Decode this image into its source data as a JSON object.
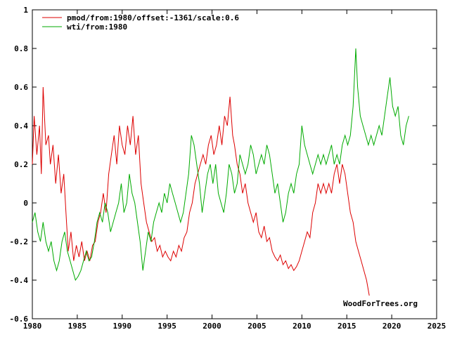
{
  "chart_data": {
    "type": "line",
    "title": "",
    "xlabel": "",
    "ylabel": "",
    "xlim": [
      1980,
      2025
    ],
    "ylim": [
      -0.6,
      1
    ],
    "x_ticks": [
      "1980",
      "1985",
      "1990",
      "1995",
      "2000",
      "2005",
      "2010",
      "2015",
      "2020",
      "2025"
    ],
    "y_ticks": [
      "-0.6",
      "-0.4",
      "-0.2",
      "0",
      "0.2",
      "0.4",
      "0.6",
      "0.8",
      "1"
    ],
    "grid": false,
    "legend_position": "top-left",
    "credit": "WoodForTrees.org",
    "series": [
      {
        "name": "pmod/from:1980/offset:-1361/scale:0.6",
        "color": "#dd0000",
        "points": [
          [
            1980.0,
            0.2
          ],
          [
            1980.2,
            0.45
          ],
          [
            1980.5,
            0.25
          ],
          [
            1980.8,
            0.4
          ],
          [
            1981.0,
            0.15
          ],
          [
            1981.2,
            0.6
          ],
          [
            1981.5,
            0.3
          ],
          [
            1981.8,
            0.35
          ],
          [
            1982.0,
            0.2
          ],
          [
            1982.3,
            0.3
          ],
          [
            1982.6,
            0.1
          ],
          [
            1982.9,
            0.25
          ],
          [
            1983.2,
            0.05
          ],
          [
            1983.5,
            0.15
          ],
          [
            1983.8,
            -0.1
          ],
          [
            1984.0,
            -0.25
          ],
          [
            1984.3,
            -0.15
          ],
          [
            1984.6,
            -0.3
          ],
          [
            1984.9,
            -0.22
          ],
          [
            1985.2,
            -0.28
          ],
          [
            1985.5,
            -0.2
          ],
          [
            1985.8,
            -0.3
          ],
          [
            1986.1,
            -0.25
          ],
          [
            1986.4,
            -0.3
          ],
          [
            1986.7,
            -0.22
          ],
          [
            1987.0,
            -0.2
          ],
          [
            1987.3,
            -0.1
          ],
          [
            1987.6,
            -0.05
          ],
          [
            1987.9,
            0.05
          ],
          [
            1988.2,
            -0.05
          ],
          [
            1988.5,
            0.15
          ],
          [
            1988.8,
            0.25
          ],
          [
            1989.1,
            0.35
          ],
          [
            1989.4,
            0.2
          ],
          [
            1989.7,
            0.4
          ],
          [
            1990.0,
            0.3
          ],
          [
            1990.3,
            0.25
          ],
          [
            1990.6,
            0.4
          ],
          [
            1990.9,
            0.3
          ],
          [
            1991.2,
            0.45
          ],
          [
            1991.5,
            0.25
          ],
          [
            1991.8,
            0.35
          ],
          [
            1992.1,
            0.1
          ],
          [
            1992.4,
            0.0
          ],
          [
            1992.7,
            -0.1
          ],
          [
            1993.0,
            -0.15
          ],
          [
            1993.3,
            -0.2
          ],
          [
            1993.6,
            -0.18
          ],
          [
            1993.9,
            -0.25
          ],
          [
            1994.2,
            -0.22
          ],
          [
            1994.5,
            -0.28
          ],
          [
            1994.8,
            -0.25
          ],
          [
            1995.1,
            -0.28
          ],
          [
            1995.4,
            -0.3
          ],
          [
            1995.7,
            -0.25
          ],
          [
            1996.0,
            -0.28
          ],
          [
            1996.3,
            -0.22
          ],
          [
            1996.6,
            -0.25
          ],
          [
            1996.9,
            -0.18
          ],
          [
            1997.2,
            -0.15
          ],
          [
            1997.5,
            -0.05
          ],
          [
            1997.8,
            0.0
          ],
          [
            1998.1,
            0.1
          ],
          [
            1998.4,
            0.15
          ],
          [
            1998.7,
            0.2
          ],
          [
            1999.0,
            0.25
          ],
          [
            1999.3,
            0.2
          ],
          [
            1999.6,
            0.3
          ],
          [
            1999.9,
            0.35
          ],
          [
            2000.2,
            0.25
          ],
          [
            2000.5,
            0.3
          ],
          [
            2000.8,
            0.4
          ],
          [
            2001.1,
            0.3
          ],
          [
            2001.4,
            0.45
          ],
          [
            2001.7,
            0.4
          ],
          [
            2002.0,
            0.55
          ],
          [
            2002.3,
            0.35
          ],
          [
            2002.5,
            0.3
          ],
          [
            2002.8,
            0.2
          ],
          [
            2003.1,
            0.15
          ],
          [
            2003.4,
            0.05
          ],
          [
            2003.7,
            0.1
          ],
          [
            2004.0,
            0.0
          ],
          [
            2004.3,
            -0.05
          ],
          [
            2004.6,
            -0.1
          ],
          [
            2004.9,
            -0.05
          ],
          [
            2005.2,
            -0.15
          ],
          [
            2005.5,
            -0.18
          ],
          [
            2005.8,
            -0.12
          ],
          [
            2006.1,
            -0.2
          ],
          [
            2006.4,
            -0.18
          ],
          [
            2006.7,
            -0.25
          ],
          [
            2007.0,
            -0.28
          ],
          [
            2007.3,
            -0.3
          ],
          [
            2007.6,
            -0.27
          ],
          [
            2007.9,
            -0.32
          ],
          [
            2008.2,
            -0.3
          ],
          [
            2008.5,
            -0.34
          ],
          [
            2008.8,
            -0.32
          ],
          [
            2009.1,
            -0.35
          ],
          [
            2009.4,
            -0.33
          ],
          [
            2009.7,
            -0.3
          ],
          [
            2010.0,
            -0.25
          ],
          [
            2010.3,
            -0.2
          ],
          [
            2010.6,
            -0.15
          ],
          [
            2010.9,
            -0.18
          ],
          [
            2011.2,
            -0.05
          ],
          [
            2011.5,
            0.0
          ],
          [
            2011.8,
            0.1
          ],
          [
            2012.1,
            0.05
          ],
          [
            2012.4,
            0.1
          ],
          [
            2012.7,
            0.05
          ],
          [
            2013.0,
            0.1
          ],
          [
            2013.3,
            0.05
          ],
          [
            2013.6,
            0.15
          ],
          [
            2013.9,
            0.2
          ],
          [
            2014.2,
            0.1
          ],
          [
            2014.5,
            0.2
          ],
          [
            2014.8,
            0.15
          ],
          [
            2015.1,
            0.05
          ],
          [
            2015.4,
            -0.05
          ],
          [
            2015.7,
            -0.1
          ],
          [
            2016.0,
            -0.2
          ],
          [
            2016.3,
            -0.25
          ],
          [
            2016.6,
            -0.3
          ],
          [
            2016.9,
            -0.35
          ],
          [
            2017.2,
            -0.4
          ],
          [
            2017.5,
            -0.48
          ]
        ]
      },
      {
        "name": "wti/from:1980",
        "color": "#00aa00",
        "points": [
          [
            1980.0,
            -0.1
          ],
          [
            1980.3,
            -0.05
          ],
          [
            1980.6,
            -0.15
          ],
          [
            1980.9,
            -0.2
          ],
          [
            1981.2,
            -0.1
          ],
          [
            1981.5,
            -0.2
          ],
          [
            1981.8,
            -0.25
          ],
          [
            1982.1,
            -0.2
          ],
          [
            1982.4,
            -0.3
          ],
          [
            1982.7,
            -0.35
          ],
          [
            1983.0,
            -0.3
          ],
          [
            1983.3,
            -0.2
          ],
          [
            1983.6,
            -0.15
          ],
          [
            1983.9,
            -0.25
          ],
          [
            1984.2,
            -0.3
          ],
          [
            1984.5,
            -0.35
          ],
          [
            1984.8,
            -0.4
          ],
          [
            1985.1,
            -0.38
          ],
          [
            1985.4,
            -0.35
          ],
          [
            1985.7,
            -0.3
          ],
          [
            1986.0,
            -0.25
          ],
          [
            1986.3,
            -0.3
          ],
          [
            1986.6,
            -0.28
          ],
          [
            1986.9,
            -0.2
          ],
          [
            1987.2,
            -0.1
          ],
          [
            1987.5,
            -0.05
          ],
          [
            1987.8,
            -0.1
          ],
          [
            1988.1,
            0.0
          ],
          [
            1988.4,
            -0.05
          ],
          [
            1988.7,
            -0.15
          ],
          [
            1989.0,
            -0.1
          ],
          [
            1989.3,
            -0.05
          ],
          [
            1989.6,
            0.0
          ],
          [
            1989.9,
            0.1
          ],
          [
            1990.2,
            -0.05
          ],
          [
            1990.5,
            0.0
          ],
          [
            1990.8,
            0.15
          ],
          [
            1991.1,
            0.05
          ],
          [
            1991.4,
            0.0
          ],
          [
            1991.7,
            -0.1
          ],
          [
            1992.0,
            -0.2
          ],
          [
            1992.3,
            -0.35
          ],
          [
            1992.6,
            -0.25
          ],
          [
            1992.9,
            -0.15
          ],
          [
            1993.2,
            -0.2
          ],
          [
            1993.5,
            -0.1
          ],
          [
            1993.8,
            -0.05
          ],
          [
            1994.1,
            0.0
          ],
          [
            1994.4,
            -0.05
          ],
          [
            1994.7,
            0.05
          ],
          [
            1995.0,
            0.0
          ],
          [
            1995.3,
            0.1
          ],
          [
            1995.6,
            0.05
          ],
          [
            1995.9,
            0.0
          ],
          [
            1996.2,
            -0.05
          ],
          [
            1996.5,
            -0.1
          ],
          [
            1996.8,
            -0.05
          ],
          [
            1997.1,
            0.05
          ],
          [
            1997.4,
            0.15
          ],
          [
            1997.7,
            0.35
          ],
          [
            1998.0,
            0.3
          ],
          [
            1998.3,
            0.2
          ],
          [
            1998.6,
            0.1
          ],
          [
            1998.9,
            -0.05
          ],
          [
            1999.2,
            0.05
          ],
          [
            1999.5,
            0.15
          ],
          [
            1999.8,
            0.2
          ],
          [
            2000.1,
            0.1
          ],
          [
            2000.4,
            0.2
          ],
          [
            2000.7,
            0.05
          ],
          [
            2001.0,
            0.0
          ],
          [
            2001.3,
            -0.05
          ],
          [
            2001.6,
            0.05
          ],
          [
            2001.9,
            0.2
          ],
          [
            2002.2,
            0.15
          ],
          [
            2002.5,
            0.05
          ],
          [
            2002.8,
            0.1
          ],
          [
            2003.1,
            0.25
          ],
          [
            2003.4,
            0.2
          ],
          [
            2003.7,
            0.15
          ],
          [
            2004.0,
            0.2
          ],
          [
            2004.3,
            0.3
          ],
          [
            2004.6,
            0.25
          ],
          [
            2004.9,
            0.15
          ],
          [
            2005.2,
            0.2
          ],
          [
            2005.5,
            0.25
          ],
          [
            2005.8,
            0.2
          ],
          [
            2006.1,
            0.3
          ],
          [
            2006.4,
            0.25
          ],
          [
            2006.7,
            0.15
          ],
          [
            2007.0,
            0.05
          ],
          [
            2007.3,
            0.1
          ],
          [
            2007.6,
            0.0
          ],
          [
            2007.9,
            -0.1
          ],
          [
            2008.2,
            -0.05
          ],
          [
            2008.5,
            0.05
          ],
          [
            2008.8,
            0.1
          ],
          [
            2009.1,
            0.05
          ],
          [
            2009.4,
            0.15
          ],
          [
            2009.7,
            0.2
          ],
          [
            2010.0,
            0.4
          ],
          [
            2010.3,
            0.3
          ],
          [
            2010.6,
            0.25
          ],
          [
            2010.9,
            0.2
          ],
          [
            2011.2,
            0.15
          ],
          [
            2011.5,
            0.2
          ],
          [
            2011.8,
            0.25
          ],
          [
            2012.1,
            0.2
          ],
          [
            2012.4,
            0.25
          ],
          [
            2012.7,
            0.2
          ],
          [
            2013.0,
            0.25
          ],
          [
            2013.3,
            0.3
          ],
          [
            2013.6,
            0.2
          ],
          [
            2013.9,
            0.25
          ],
          [
            2014.2,
            0.2
          ],
          [
            2014.5,
            0.3
          ],
          [
            2014.8,
            0.35
          ],
          [
            2015.1,
            0.3
          ],
          [
            2015.4,
            0.35
          ],
          [
            2015.7,
            0.5
          ],
          [
            2016.0,
            0.8
          ],
          [
            2016.2,
            0.6
          ],
          [
            2016.5,
            0.45
          ],
          [
            2016.8,
            0.4
          ],
          [
            2017.1,
            0.35
          ],
          [
            2017.4,
            0.3
          ],
          [
            2017.7,
            0.35
          ],
          [
            2018.0,
            0.3
          ],
          [
            2018.3,
            0.35
          ],
          [
            2018.6,
            0.4
          ],
          [
            2018.9,
            0.35
          ],
          [
            2019.2,
            0.45
          ],
          [
            2019.5,
            0.55
          ],
          [
            2019.8,
            0.65
          ],
          [
            2020.1,
            0.5
          ],
          [
            2020.4,
            0.45
          ],
          [
            2020.7,
            0.5
          ],
          [
            2021.0,
            0.35
          ],
          [
            2021.3,
            0.3
          ],
          [
            2021.6,
            0.4
          ],
          [
            2021.9,
            0.45
          ]
        ]
      }
    ]
  }
}
